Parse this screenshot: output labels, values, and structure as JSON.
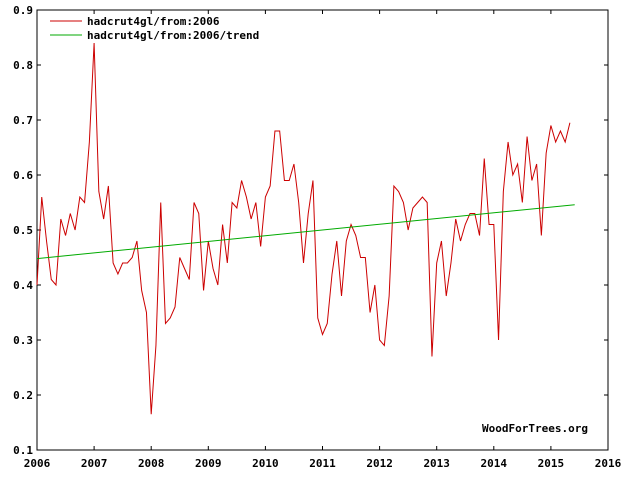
{
  "chart_data": {
    "type": "line",
    "title": "",
    "xlabel": "",
    "ylabel": "",
    "xlim": [
      2006,
      2016
    ],
    "ylim": [
      0.1,
      0.9
    ],
    "xticks": [
      "2006",
      "2007",
      "2008",
      "2009",
      "2010",
      "2011",
      "2012",
      "2013",
      "2014",
      "2015",
      "2016"
    ],
    "yticks": [
      "0.1",
      "0.2",
      "0.3",
      "0.4",
      "0.5",
      "0.6",
      "0.7",
      "0.8",
      "0.9"
    ],
    "grid": false,
    "legend_position": "top-left",
    "credit": "WoodForTrees.org",
    "series": [
      {
        "name": "hadcrut4gl/from:2006",
        "color": "#cc0000",
        "x": [
          2006.0,
          2006.083,
          2006.167,
          2006.25,
          2006.333,
          2006.417,
          2006.5,
          2006.583,
          2006.667,
          2006.75,
          2006.833,
          2006.917,
          2007.0,
          2007.083,
          2007.167,
          2007.25,
          2007.333,
          2007.417,
          2007.5,
          2007.583,
          2007.667,
          2007.75,
          2007.833,
          2007.917,
          2008.0,
          2008.083,
          2008.167,
          2008.25,
          2008.333,
          2008.417,
          2008.5,
          2008.583,
          2008.667,
          2008.75,
          2008.833,
          2008.917,
          2009.0,
          2009.083,
          2009.167,
          2009.25,
          2009.333,
          2009.417,
          2009.5,
          2009.583,
          2009.667,
          2009.75,
          2009.833,
          2009.917,
          2010.0,
          2010.083,
          2010.167,
          2010.25,
          2010.333,
          2010.417,
          2010.5,
          2010.583,
          2010.667,
          2010.75,
          2010.833,
          2010.917,
          2011.0,
          2011.083,
          2011.167,
          2011.25,
          2011.333,
          2011.417,
          2011.5,
          2011.583,
          2011.667,
          2011.75,
          2011.833,
          2011.917,
          2012.0,
          2012.083,
          2012.167,
          2012.25,
          2012.333,
          2012.417,
          2012.5,
          2012.583,
          2012.667,
          2012.75,
          2012.833,
          2012.917,
          2013.0,
          2013.083,
          2013.167,
          2013.25,
          2013.333,
          2013.417,
          2013.5,
          2013.583,
          2013.667,
          2013.75,
          2013.833,
          2013.917,
          2014.0,
          2014.083,
          2014.167,
          2014.25,
          2014.333,
          2014.417,
          2014.5,
          2014.583,
          2014.667,
          2014.75,
          2014.833,
          2014.917,
          2015.0,
          2015.083,
          2015.167,
          2015.25,
          2015.333
        ],
        "y": [
          0.4,
          0.56,
          0.48,
          0.41,
          0.4,
          0.52,
          0.49,
          0.53,
          0.5,
          0.56,
          0.55,
          0.66,
          0.84,
          0.57,
          0.52,
          0.58,
          0.44,
          0.42,
          0.44,
          0.44,
          0.45,
          0.48,
          0.39,
          0.35,
          0.165,
          0.29,
          0.55,
          0.33,
          0.34,
          0.36,
          0.45,
          0.43,
          0.41,
          0.55,
          0.53,
          0.39,
          0.48,
          0.43,
          0.4,
          0.51,
          0.44,
          0.55,
          0.54,
          0.59,
          0.56,
          0.52,
          0.55,
          0.47,
          0.56,
          0.58,
          0.68,
          0.68,
          0.59,
          0.59,
          0.62,
          0.55,
          0.44,
          0.53,
          0.59,
          0.34,
          0.31,
          0.33,
          0.42,
          0.48,
          0.38,
          0.48,
          0.51,
          0.49,
          0.45,
          0.45,
          0.35,
          0.4,
          0.3,
          0.29,
          0.38,
          0.58,
          0.57,
          0.55,
          0.5,
          0.54,
          0.55,
          0.56,
          0.55,
          0.27,
          0.44,
          0.48,
          0.38,
          0.44,
          0.52,
          0.48,
          0.51,
          0.53,
          0.53,
          0.49,
          0.63,
          0.51,
          0.51,
          0.3,
          0.57,
          0.66,
          0.6,
          0.62,
          0.55,
          0.67,
          0.59,
          0.62,
          0.49,
          0.64,
          0.69,
          0.66,
          0.68,
          0.66,
          0.695
        ]
      },
      {
        "name": "hadcrut4gl/from:2006/trend",
        "color": "#00aa00",
        "x": [
          2006.0,
          2015.417
        ],
        "y": [
          0.448,
          0.546
        ]
      }
    ]
  }
}
